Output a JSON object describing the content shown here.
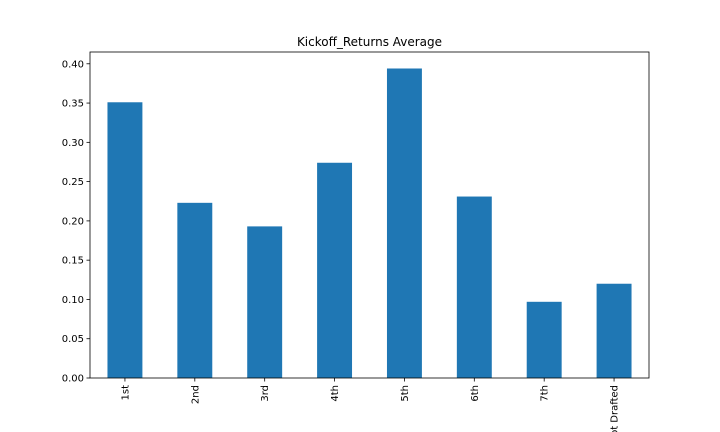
{
  "chart_data": {
    "type": "bar",
    "title": "Kickoff_Returns Average",
    "xlabel": "",
    "ylabel": "",
    "categories": [
      "1st",
      "2nd",
      "3rd",
      "4th",
      "5th",
      "6th",
      "7th",
      "Not Drafted"
    ],
    "values": [
      0.351,
      0.223,
      0.193,
      0.274,
      0.394,
      0.231,
      0.097,
      0.12
    ],
    "ylim": [
      0,
      0.415
    ],
    "yticks": [
      "0.00",
      "0.05",
      "0.10",
      "0.15",
      "0.20",
      "0.25",
      "0.30",
      "0.35",
      "0.40"
    ],
    "bar_color": "#1f77b4",
    "grid": false,
    "legend": "none"
  }
}
